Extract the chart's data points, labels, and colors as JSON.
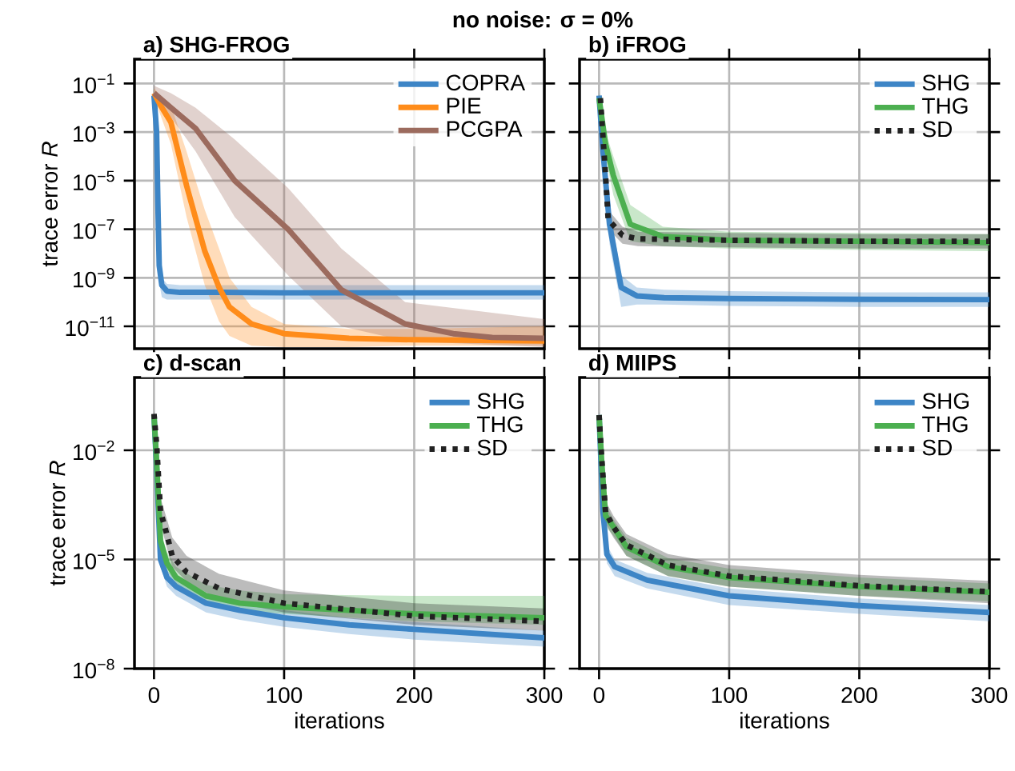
{
  "chart_data": [
    {
      "type": "line",
      "title": "a) SHG-FROG",
      "ylabel": "trace error *R*",
      "log": "y",
      "grid": true,
      "legend": "top right",
      "tick_labels": "y",
      "annotations": [
        "no noise: σ = 0%"
      ],
      "xlim": [
        -15,
        300
      ],
      "xticks": [
        0,
        100,
        200,
        300
      ],
      "ylim": [
        1.2e-12,
        1
      ],
      "yticks": [
        {
          "value": 0.1,
          "label": "10$^{−1}$"
        },
        {
          "value": 0.001,
          "label": "10$^{−3}$"
        },
        {
          "value": 1e-05,
          "label": "10$^{−5}$"
        },
        {
          "value": 1e-07,
          "label": "10$^{−7}$"
        },
        {
          "value": 1e-09,
          "label": "10$^{−9}$"
        },
        {
          "value": 1e-11,
          "label": "10$^{−11}$"
        }
      ],
      "series": [
        {
          "name": "COPRA",
          "color": "#3d85c6",
          "x": [
            0,
            2,
            3,
            4,
            6,
            10,
            20,
            50,
            100,
            200,
            300
          ],
          "values": [
            0.032,
            0.001,
            1e-06,
            3.2e-09,
            5e-10,
            2.8e-10,
            2.5e-10,
            2.5e-10,
            2.4e-10,
            2.4e-10,
            2.4e-10
          ],
          "upper": [
            0.05,
            0.0032,
            6.3e-06,
            1e-08,
            1e-09,
            5.6e-10,
            5e-10,
            5e-10,
            5e-10,
            5e-10,
            5e-10
          ],
          "lower": [
            0.02,
            0.00032,
            1.6e-07,
            6.3e-10,
            1.6e-10,
            1.26e-10,
            1.26e-10,
            1.26e-10,
            1.26e-10,
            1.26e-10,
            1.26e-10
          ]
        },
        {
          "name": "PIE",
          "color": "#ff8c1a",
          "x": [
            0,
            5,
            13,
            25,
            39,
            50,
            58,
            75,
            100,
            150,
            200,
            300
          ],
          "values": [
            0.04,
            0.0126,
            0.0025,
            6.3e-06,
            1.26e-08,
            4e-10,
            6.3e-11,
            1.26e-11,
            5e-12,
            3.2e-12,
            2.8e-12,
            2.5e-12
          ],
          "upper": [
            0.063,
            0.032,
            0.0126,
            0.00016,
            6.3e-07,
            1.6e-08,
            1e-09,
            6.3e-11,
            1.26e-11,
            7.9e-12,
            7.9e-12,
            1e-11
          ],
          "lower": [
            0.025,
            0.005,
            0.00032,
            3.2e-07,
            5e-10,
            1.6e-11,
            4e-12,
            1.6e-12,
            1.4e-12,
            1.4e-12,
            1.6e-12,
            1.6e-12
          ]
        },
        {
          "name": "PCGPA",
          "color": "#9c6b5e",
          "x": [
            0,
            13,
            32,
            62,
            103,
            144,
            193,
            230,
            260,
            300
          ],
          "values": [
            0.04,
            0.01,
            0.0014,
            1e-05,
            1e-07,
            3.2e-10,
            1.26e-11,
            5e-12,
            3.5e-12,
            3.2e-12
          ],
          "upper": [
            0.08,
            0.04,
            0.01,
            0.0005,
            5e-06,
            1.6e-08,
            1e-10,
            null,
            null,
            2e-11
          ],
          "lower": [
            0.025,
            0.004,
            0.00016,
            3.2e-07,
            1.26e-09,
            1e-11,
            2.5e-12,
            null,
            null,
            1.4e-12
          ]
        }
      ]
    },
    {
      "type": "line",
      "title": "b) iFROG",
      "log": "y",
      "grid": true,
      "legend": "top right",
      "tick_labels": false,
      "xlim": [
        -15,
        300
      ],
      "xticks": [
        0,
        100,
        200,
        300
      ],
      "ylim": [
        1.2e-12,
        1
      ],
      "yticks": [
        {
          "value": 0.1,
          "label": null
        },
        {
          "value": 0.001,
          "label": null
        },
        {
          "value": 1e-05,
          "label": null
        },
        {
          "value": 1e-07,
          "label": null
        },
        {
          "value": 1e-09,
          "label": null
        },
        {
          "value": 1e-11,
          "label": null
        }
      ],
      "series": [
        {
          "name": "SHG",
          "color": "#3d85c6",
          "x": [
            0,
            3,
            8,
            17,
            29,
            50,
            100,
            200,
            300
          ],
          "values": [
            0.032,
            0.00016,
            1.6e-07,
            4e-10,
            1.8e-10,
            1.5e-10,
            1.4e-10,
            1.3e-10,
            1.26e-10
          ],
          "upper": [
            0.05,
            0.0005,
            1e-06,
            1.26e-09,
            4e-10,
            3.2e-10,
            2.8e-10,
            2.5e-10,
            2.5e-10
          ],
          "lower": [
            0.02,
            4e-05,
            2.5e-08,
            6.3e-11,
            7.9e-11,
            7.9e-11,
            7e-11,
            6.3e-11,
            6.3e-11
          ]
        },
        {
          "name": "THG",
          "color": "#4caf50",
          "x": [
            0,
            5,
            11,
            24,
            49,
            100,
            200,
            300
          ],
          "values": [
            0.025,
            0.00032,
            1.6e-05,
            1.6e-07,
            5e-08,
            3.5e-08,
            3.2e-08,
            2.8e-08
          ],
          "upper": [
            0.04,
            0.001,
            0.0001,
            1e-06,
            1.26e-07,
            7.9e-08,
            7e-08,
            6.3e-08
          ],
          "lower": [
            0.016,
            0.0001,
            2.5e-06,
            3.2e-08,
            2e-08,
            1.6e-08,
            1.4e-08,
            1.26e-08
          ]
        },
        {
          "name": "SD",
          "color": "#222222",
          "line_style": "dotted",
          "x": [
            1,
            5,
            7,
            18,
            30,
            100,
            200,
            300
          ],
          "values": [
            0.025,
            1.6e-05,
            2.5e-07,
            5.6e-08,
            4e-08,
            3.5e-08,
            3.2e-08,
            3.2e-08
          ],
          "upper": [
            0.04,
            5e-05,
            6.3e-07,
            1.26e-07,
            7.9e-08,
            7e-08,
            6.3e-08,
            6.3e-08
          ],
          "lower": [
            0.016,
            5e-06,
            1e-07,
            2.5e-08,
            2e-08,
            1.8e-08,
            1.6e-08,
            1.6e-08
          ]
        }
      ]
    },
    {
      "type": "line",
      "title": "c) d-scan",
      "xlabel": "iterations",
      "ylabel": "trace error *R*",
      "log": "y",
      "grid": true,
      "legend": "top right",
      "xlim": [
        -15,
        300
      ],
      "xticks": [
        0,
        100,
        200,
        300
      ],
      "ylim": [
        1e-08,
        1
      ],
      "yticks": [
        {
          "value": 0.01,
          "label": "10$^{−2}$"
        },
        {
          "value": 1e-05,
          "label": "10$^{−5}$"
        },
        {
          "value": 1e-08,
          "label": "10$^{−8}$"
        }
      ],
      "series": [
        {
          "name": "SHG",
          "color": "#3d85c6",
          "x": [
            0,
            2,
            5,
            10,
            17,
            40,
            66,
            100,
            150,
            200,
            300
          ],
          "values": [
            0.093,
            0.0032,
            1e-05,
            3.2e-06,
            1.8e-06,
            6.3e-07,
            4e-07,
            2.5e-07,
            1.6e-07,
            1.2e-07,
            7e-08
          ],
          "upper": [
            0.12,
            0.005,
            1.6e-05,
            5e-06,
            2.8e-06,
            1e-06,
            6.3e-07,
            4e-07,
            2.5e-07,
            1.9e-07,
            1.1e-07
          ],
          "lower": [
            0.074,
            0.002,
            6.3e-06,
            1.8e-06,
            1e-06,
            3.5e-07,
            2.2e-07,
            1.4e-07,
            8.9e-08,
            6.3e-08,
            4e-08
          ]
        },
        {
          "name": "THG",
          "color": "#4caf50",
          "x": [
            0,
            2,
            5,
            10,
            17,
            40,
            66,
            100,
            200,
            300
          ],
          "values": [
            0.093,
            0.005,
            3.2e-05,
            7.9e-06,
            3.2e-06,
            1e-06,
            6.3e-07,
            5e-07,
            3.2e-07,
            2.5e-07
          ],
          "upper": [
            0.12,
            0.0079,
            6.3e-05,
            1.6e-05,
            6.3e-06,
            2e-06,
            1.4e-06,
            1.1e-06,
            1e-06,
            1e-06
          ],
          "lower": [
            0.074,
            0.0032,
            1.6e-05,
            5e-06,
            2e-06,
            6.3e-07,
            4e-07,
            3.2e-07,
            2e-07,
            1.6e-07
          ]
        },
        {
          "name": "SD",
          "color": "#222222",
          "line_style": "dotted",
          "x": [
            0,
            2,
            5,
            10,
            14,
            25,
            50,
            100,
            200,
            300
          ],
          "values": [
            0.1,
            0.015,
            0.00021,
            4.7e-05,
            1.26e-05,
            4.5e-06,
            1.6e-06,
            6.3e-07,
            2.8e-07,
            2e-07
          ],
          "upper": [
            0.126,
            0.025,
            0.0005,
            0.000126,
            4e-05,
            1.26e-05,
            4e-06,
            1.4e-06,
            6.3e-07,
            4.5e-07
          ],
          "lower": [
            0.079,
            0.0079,
            0.0001,
            2e-05,
            6.3e-06,
            2.5e-06,
            7.9e-07,
            3.5e-07,
            1.6e-07,
            1.1e-07
          ]
        }
      ]
    },
    {
      "type": "line",
      "title": "d) MIIPS",
      "xlabel": "iterations",
      "log": "y",
      "grid": true,
      "legend": "top right",
      "tick_labels": "x",
      "xlim": [
        -15,
        300
      ],
      "xticks": [
        0,
        100,
        200,
        300
      ],
      "ylim": [
        1e-08,
        1
      ],
      "yticks": [
        {
          "value": 0.01,
          "label": null
        },
        {
          "value": 1e-05,
          "label": null
        },
        {
          "value": 1e-08,
          "label": null
        }
      ],
      "series": [
        {
          "name": "SHG",
          "color": "#3d85c6",
          "x": [
            0,
            3,
            6,
            12,
            37,
            100,
            200,
            300
          ],
          "values": [
            0.093,
            0.00021,
            1.4e-05,
            6.3e-06,
            2.7e-06,
            1e-06,
            5.4e-07,
            3.5e-07
          ],
          "upper": [
            0.12,
            0.0004,
            2.5e-05,
            1e-05,
            4.3e-06,
            1.6e-06,
            8.5e-07,
            5.6e-07
          ],
          "lower": [
            0.074,
            0.000126,
            7.9e-06,
            3.5e-06,
            1.6e-06,
            5.6e-07,
            3.2e-07,
            2e-07
          ]
        },
        {
          "name": "THG",
          "color": "#4caf50",
          "x": [
            0,
            2,
            5,
            11,
            21,
            53,
            100,
            200,
            300
          ],
          "values": [
            0.093,
            0.005,
            0.00016,
            7.9e-05,
            2.2e-05,
            6.3e-06,
            3.2e-06,
            1.8e-06,
            1.26e-06
          ],
          "upper": [
            0.12,
            0.0079,
            0.00032,
            0.000126,
            4e-05,
            1.1e-05,
            5.6e-06,
            3.2e-06,
            2.2e-06
          ],
          "lower": [
            0.074,
            0.0032,
            7.9e-05,
            4.5e-05,
            1.26e-05,
            3.5e-06,
            1.8e-06,
            1e-06,
            7e-07
          ]
        },
        {
          "name": "SD",
          "color": "#222222",
          "line_style": "dotted",
          "x": [
            0,
            2,
            5,
            11,
            21,
            53,
            100,
            200,
            300
          ],
          "values": [
            0.093,
            0.0063,
            0.0002,
            7.9e-05,
            2.5e-05,
            7e-06,
            3.5e-06,
            1.9e-06,
            1.3e-06
          ],
          "upper": [
            0.12,
            0.01,
            0.0004,
            0.00016,
            5e-05,
            1.4e-05,
            7e-06,
            3.8e-06,
            2.6e-06
          ],
          "lower": [
            0.074,
            0.004,
            0.0001,
            4e-05,
            1.26e-05,
            3.5e-06,
            1.8e-06,
            1e-06,
            6.3e-07
          ]
        }
      ]
    }
  ]
}
